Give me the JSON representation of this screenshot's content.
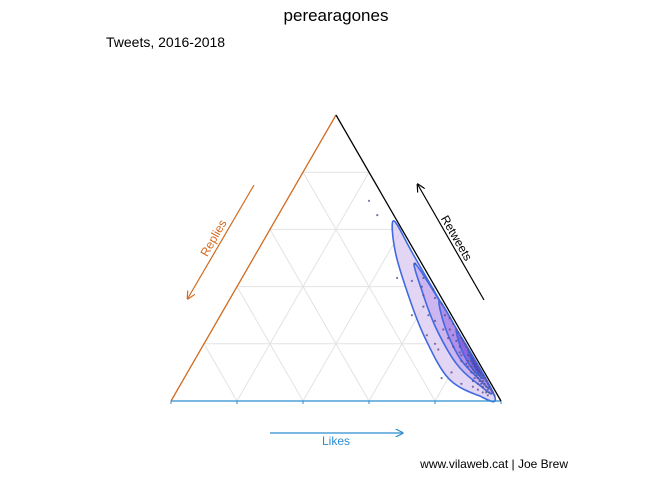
{
  "chart_data": {
    "type": "ternary",
    "title": "perearagones",
    "subtitle": "Tweets, 2016-2018",
    "caption": "www.vilaweb.cat | Joe Brew",
    "axes": {
      "likes": {
        "label": "Likes",
        "color": "#2b8ccf"
      },
      "retweets": {
        "label": "Retweets",
        "color": "#000000"
      },
      "replies": {
        "label": "Replies",
        "color": "#d2691e"
      }
    },
    "grid_steps": [
      0.2,
      0.4,
      0.6,
      0.8
    ],
    "grid": true,
    "points": [
      [
        0.5,
        0.48,
        0.02
      ],
      [
        0.55,
        0.43,
        0.02
      ],
      [
        0.6,
        0.39,
        0.01
      ],
      [
        0.62,
        0.36,
        0.02
      ],
      [
        0.65,
        0.34,
        0.01
      ],
      [
        0.68,
        0.3,
        0.02
      ],
      [
        0.7,
        0.29,
        0.01
      ],
      [
        0.72,
        0.27,
        0.01
      ],
      [
        0.74,
        0.25,
        0.01
      ],
      [
        0.75,
        0.24,
        0.01
      ],
      [
        0.77,
        0.22,
        0.01
      ],
      [
        0.78,
        0.21,
        0.01
      ],
      [
        0.79,
        0.2,
        0.01
      ],
      [
        0.8,
        0.19,
        0.01
      ],
      [
        0.81,
        0.18,
        0.01
      ],
      [
        0.82,
        0.17,
        0.01
      ],
      [
        0.83,
        0.16,
        0.01
      ],
      [
        0.84,
        0.15,
        0.01
      ],
      [
        0.85,
        0.14,
        0.01
      ],
      [
        0.86,
        0.13,
        0.01
      ],
      [
        0.87,
        0.12,
        0.01
      ],
      [
        0.88,
        0.11,
        0.01
      ],
      [
        0.89,
        0.1,
        0.01
      ],
      [
        0.9,
        0.09,
        0.01
      ],
      [
        0.91,
        0.08,
        0.01
      ],
      [
        0.92,
        0.07,
        0.01
      ],
      [
        0.93,
        0.06,
        0.01
      ],
      [
        0.94,
        0.05,
        0.01
      ],
      [
        0.95,
        0.04,
        0.01
      ],
      [
        0.96,
        0.03,
        0.01
      ],
      [
        0.66,
        0.28,
        0.06
      ],
      [
        0.7,
        0.25,
        0.05
      ],
      [
        0.73,
        0.22,
        0.05
      ],
      [
        0.76,
        0.19,
        0.05
      ],
      [
        0.79,
        0.17,
        0.04
      ],
      [
        0.81,
        0.14,
        0.05
      ],
      [
        0.84,
        0.12,
        0.04
      ],
      [
        0.86,
        0.1,
        0.04
      ],
      [
        0.88,
        0.08,
        0.04
      ],
      [
        0.9,
        0.06,
        0.04
      ],
      [
        0.92,
        0.05,
        0.03
      ],
      [
        0.94,
        0.03,
        0.03
      ],
      [
        0.82,
        0.16,
        0.02
      ],
      [
        0.83,
        0.14,
        0.03
      ],
      [
        0.85,
        0.13,
        0.02
      ],
      [
        0.86,
        0.12,
        0.02
      ],
      [
        0.87,
        0.1,
        0.03
      ],
      [
        0.88,
        0.1,
        0.02
      ],
      [
        0.89,
        0.09,
        0.02
      ],
      [
        0.9,
        0.08,
        0.02
      ],
      [
        0.91,
        0.07,
        0.02
      ],
      [
        0.92,
        0.06,
        0.02
      ],
      [
        0.93,
        0.05,
        0.02
      ],
      [
        0.94,
        0.04,
        0.02
      ],
      [
        0.95,
        0.03,
        0.02
      ],
      [
        0.84,
        0.14,
        0.02
      ],
      [
        0.85,
        0.12,
        0.03
      ],
      [
        0.87,
        0.11,
        0.02
      ],
      [
        0.88,
        0.09,
        0.03
      ],
      [
        0.89,
        0.08,
        0.03
      ],
      [
        0.9,
        0.07,
        0.03
      ],
      [
        0.91,
        0.06,
        0.03
      ],
      [
        0.86,
        0.11,
        0.03
      ],
      [
        0.88,
        0.07,
        0.05
      ],
      [
        0.83,
        0.13,
        0.04
      ],
      [
        0.8,
        0.16,
        0.04
      ],
      [
        0.78,
        0.19,
        0.03
      ],
      [
        0.76,
        0.21,
        0.03
      ],
      [
        0.74,
        0.23,
        0.03
      ],
      [
        0.72,
        0.25,
        0.03
      ],
      [
        0.6,
        0.33,
        0.07
      ],
      [
        0.58,
        0.37,
        0.05
      ],
      [
        0.63,
        0.3,
        0.07
      ],
      [
        0.52,
        0.42,
        0.06
      ],
      [
        0.56,
        0.4,
        0.04
      ],
      [
        0.47,
        0.43,
        0.1
      ],
      [
        0.58,
        0.3,
        0.12
      ],
      [
        0.66,
        0.23,
        0.11
      ],
      [
        0.7,
        0.2,
        0.1
      ],
      [
        0.72,
        0.18,
        0.1
      ],
      [
        0.85,
        0.06,
        0.09
      ],
      [
        0.8,
        0.1,
        0.1
      ],
      [
        0.78,
        0.08,
        0.14
      ],
      [
        0.3,
        0.65,
        0.05
      ],
      [
        0.25,
        0.7,
        0.05
      ],
      [
        0.95,
        0.02,
        0.03
      ],
      [
        0.97,
        0.02,
        0.01
      ],
      [
        0.93,
        0.03,
        0.04
      ],
      [
        0.91,
        0.04,
        0.05
      ],
      [
        0.89,
        0.05,
        0.06
      ]
    ],
    "contours": [
      {
        "level": 1,
        "color": "#4169e1",
        "fill": "#d9c8f2",
        "loop": [
          [
            0.36,
            0.63,
            0.01
          ],
          [
            0.42,
            0.52,
            0.06
          ],
          [
            0.55,
            0.35,
            0.1
          ],
          [
            0.66,
            0.22,
            0.12
          ],
          [
            0.8,
            0.08,
            0.12
          ],
          [
            0.92,
            0.02,
            0.06
          ],
          [
            0.97,
            0.02,
            0.01
          ],
          [
            0.7,
            0.29,
            0.01
          ],
          [
            0.48,
            0.51,
            0.01
          ]
        ]
      },
      {
        "level": 2,
        "color": "#4169e1",
        "fill": "#c6aaee",
        "loop": [
          [
            0.5,
            0.48,
            0.02
          ],
          [
            0.58,
            0.37,
            0.05
          ],
          [
            0.68,
            0.25,
            0.07
          ],
          [
            0.8,
            0.13,
            0.07
          ],
          [
            0.9,
            0.06,
            0.04
          ],
          [
            0.95,
            0.04,
            0.01
          ],
          [
            0.7,
            0.29,
            0.01
          ]
        ]
      },
      {
        "level": 3,
        "color": "#4169e1",
        "fill": "#a883e6",
        "loop": [
          [
            0.64,
            0.35,
            0.01
          ],
          [
            0.7,
            0.26,
            0.04
          ],
          [
            0.8,
            0.15,
            0.05
          ],
          [
            0.89,
            0.08,
            0.03
          ],
          [
            0.94,
            0.05,
            0.01
          ],
          [
            0.78,
            0.21,
            0.01
          ]
        ]
      },
      {
        "level": 4,
        "color": "#4169e1",
        "fill": "#7d55dc",
        "loop": [
          [
            0.74,
            0.25,
            0.01
          ],
          [
            0.79,
            0.18,
            0.03
          ],
          [
            0.86,
            0.11,
            0.03
          ],
          [
            0.91,
            0.08,
            0.01
          ],
          [
            0.82,
            0.17,
            0.01
          ]
        ]
      },
      {
        "level": 5,
        "color": "#4169e1",
        "fill": "#4a2cc4",
        "loop": [
          [
            0.81,
            0.18,
            0.01
          ],
          [
            0.84,
            0.14,
            0.02
          ],
          [
            0.88,
            0.1,
            0.02
          ],
          [
            0.9,
            0.09,
            0.01
          ],
          [
            0.85,
            0.14,
            0.01
          ]
        ]
      }
    ]
  }
}
